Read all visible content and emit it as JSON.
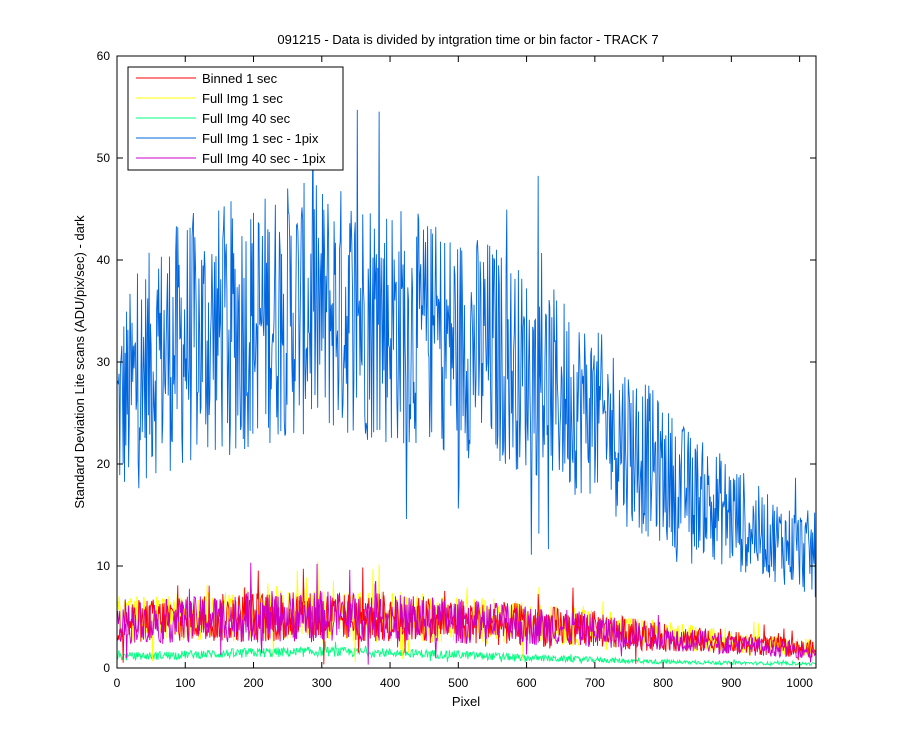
{
  "chart_data": {
    "type": "line",
    "title": "091215 - Data is divided by intgration time or bin factor - TRACK 7",
    "xlabel": "Pixel",
    "ylabel": "Standard Deviation Lite scans (ADU/pix/sec) - dark",
    "xlim": [
      0,
      1024
    ],
    "ylim": [
      0,
      60
    ],
    "xticks": [
      0,
      100,
      200,
      300,
      400,
      500,
      600,
      700,
      800,
      900,
      1000
    ],
    "yticks": [
      0,
      10,
      20,
      30,
      40,
      50,
      60
    ],
    "grid": false,
    "legend_position": "top-left",
    "series": [
      {
        "name": "Binned 1 sec",
        "color": "#ff0000",
        "x": [
          0,
          100,
          200,
          300,
          400,
          500,
          600,
          700,
          800,
          900,
          1024
        ],
        "mean": [
          4.5,
          4.8,
          5.0,
          5.0,
          4.9,
          4.6,
          4.2,
          3.8,
          3.0,
          2.5,
          1.8
        ],
        "spread": [
          1.5,
          1.6,
          1.8,
          1.8,
          1.7,
          1.6,
          1.5,
          1.3,
          1.0,
          0.8,
          0.6
        ]
      },
      {
        "name": "Full Img 1 sec",
        "color": "#ffff00",
        "x": [
          0,
          100,
          200,
          300,
          400,
          500,
          600,
          700,
          800,
          900,
          1024
        ],
        "mean": [
          4.8,
          5.0,
          5.2,
          5.2,
          5.0,
          4.8,
          4.4,
          3.9,
          3.2,
          2.6,
          2.0
        ],
        "spread": [
          1.6,
          1.7,
          1.9,
          1.8,
          1.8,
          1.7,
          1.5,
          1.3,
          1.0,
          0.8,
          0.6
        ]
      },
      {
        "name": "Full Img 40 sec",
        "color": "#00ff7f",
        "x": [
          0,
          100,
          200,
          300,
          400,
          500,
          600,
          700,
          800,
          900,
          1024
        ],
        "mean": [
          1.1,
          1.3,
          1.5,
          1.6,
          1.5,
          1.3,
          1.0,
          0.8,
          0.6,
          0.5,
          0.4
        ],
        "spread": [
          0.3,
          0.3,
          0.35,
          0.35,
          0.3,
          0.3,
          0.25,
          0.2,
          0.15,
          0.12,
          0.1
        ]
      },
      {
        "name": "Full Img 1 sec - 1pix",
        "color": "#0066dd",
        "x": [
          0,
          50,
          100,
          150,
          200,
          250,
          300,
          350,
          400,
          450,
          500,
          550,
          600,
          650,
          700,
          750,
          800,
          850,
          900,
          950,
          1024
        ],
        "mean": [
          25,
          30,
          32,
          33,
          34,
          35,
          35,
          35,
          34,
          33,
          32,
          31,
          29,
          27,
          25,
          22,
          19,
          17,
          15,
          13,
          11
        ],
        "spread": [
          7,
          8,
          9,
          9,
          9,
          9,
          9,
          9,
          9,
          8,
          8,
          8,
          7,
          7,
          6,
          6,
          5,
          4,
          4,
          3,
          3
        ]
      },
      {
        "name": "Full Img 40 sec - 1pix",
        "color": "#cc00cc",
        "x": [
          0,
          100,
          200,
          300,
          400,
          500,
          600,
          700,
          800,
          900,
          1024
        ],
        "mean": [
          4.3,
          4.7,
          5.0,
          5.1,
          4.9,
          4.6,
          4.2,
          3.7,
          3.0,
          2.3,
          1.6
        ],
        "spread": [
          1.4,
          1.6,
          1.8,
          1.8,
          1.7,
          1.6,
          1.4,
          1.2,
          0.9,
          0.7,
          0.5
        ]
      }
    ]
  }
}
